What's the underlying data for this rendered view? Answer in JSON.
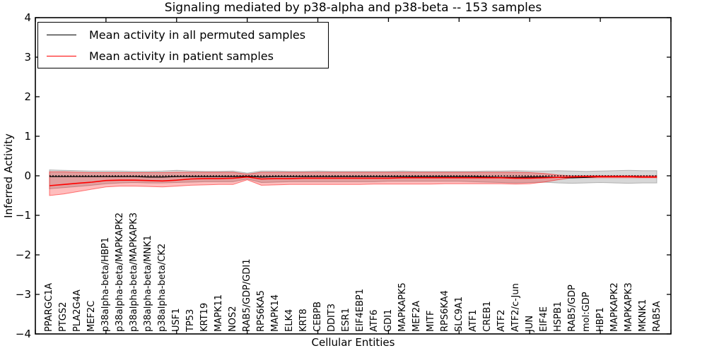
{
  "title": "Signaling mediated by p38-alpha and p38-beta -- 153 samples",
  "axes": {
    "x_label": "Cellular Entities",
    "y_label": "Inferred Activity"
  },
  "legend": {
    "items": [
      {
        "label": "Mean activity in all permuted samples",
        "color": "#000000"
      },
      {
        "label": "Mean activity in patient samples",
        "color": "#ff0000"
      }
    ]
  },
  "colors": {
    "permuted_line": "#000000",
    "patient_line": "#ff0000",
    "permuted_band_fill": "rgba(110,110,110,0.28)",
    "permuted_band_edge": "rgba(110,110,110,0.45)",
    "patient_band_fill": "rgba(255,0,0,0.26)",
    "patient_band_edge": "rgba(255,0,0,0.50)",
    "zero_line": "#000000",
    "frame": "#000000"
  },
  "chart_data": {
    "type": "line",
    "title": "Signaling mediated by p38-alpha and p38-beta -- 153 samples",
    "xlabel": "Cellular Entities",
    "ylabel": "Inferred Activity",
    "ylim": [
      -4,
      4
    ],
    "xlim": [
      0,
      45
    ],
    "grid": false,
    "legend_position": "upper left",
    "yticks": [
      -4,
      -3,
      -2,
      -1,
      0,
      1,
      2,
      3,
      4
    ],
    "yticklabels": [
      "−4",
      "−3",
      "−2",
      "−1",
      "0",
      "1",
      "2",
      "3",
      "4"
    ],
    "xticks": [
      0,
      5,
      10,
      15,
      20,
      25,
      30,
      35,
      40,
      45
    ],
    "zero_reference_line": {
      "y": 0,
      "style": "dotted",
      "color": "#000000"
    },
    "categories": [
      "PPARGC1A",
      "PTGS2",
      "PLA2G4A",
      "MEF2C",
      "p38alpha-beta/HBP1",
      "p38alpha-beta/MAPKAPK2",
      "p38alpha-beta/MAPKAPK3",
      "p38alpha-beta/MNK1",
      "p38alpha-beta/CK2",
      "USF1",
      "TP53",
      "KRT19",
      "MAPK11",
      "NOS2",
      "RAB5/GDP/GDI1",
      "RPS6KA5",
      "MAPK14",
      "ELK4",
      "KRT8",
      "CEBPB",
      "DDIT3",
      "ESR1",
      "EIF4EBP1",
      "ATF6",
      "GDI1",
      "MAPKAPK5",
      "MEF2A",
      "MITF",
      "RPS6KA4",
      "SLC9A1",
      "ATF1",
      "CREB1",
      "ATF2",
      "ATF2/c-Jun",
      "JUN",
      "EIF4E",
      "HSPB1",
      "RAB5/GDP",
      "mol:GDP",
      "HBP1",
      "MAPKAPK2",
      "MAPKAPK3",
      "MKNK1",
      "RAB5A"
    ],
    "series": [
      {
        "name": "Mean activity in all permuted samples",
        "color": "#000000",
        "values": [
          -0.02,
          -0.02,
          -0.02,
          -0.02,
          -0.02,
          -0.02,
          -0.02,
          -0.03,
          -0.03,
          -0.02,
          -0.02,
          -0.02,
          -0.02,
          -0.02,
          -0.01,
          -0.03,
          -0.02,
          -0.02,
          -0.02,
          -0.02,
          -0.02,
          -0.02,
          -0.02,
          -0.02,
          -0.02,
          -0.02,
          -0.02,
          -0.02,
          -0.02,
          -0.02,
          -0.02,
          -0.03,
          -0.04,
          -0.04,
          -0.03,
          -0.03,
          -0.04,
          -0.05,
          -0.04,
          -0.02,
          -0.02,
          -0.02,
          -0.03,
          -0.03
        ]
      },
      {
        "name": "Mean activity in patient samples",
        "color": "#ff0000",
        "values": [
          -0.25,
          -0.22,
          -0.19,
          -0.16,
          -0.12,
          -0.11,
          -0.11,
          -0.12,
          -0.13,
          -0.11,
          -0.08,
          -0.07,
          -0.07,
          -0.06,
          -0.03,
          -0.08,
          -0.07,
          -0.07,
          -0.06,
          -0.06,
          -0.06,
          -0.06,
          -0.06,
          -0.06,
          -0.06,
          -0.05,
          -0.05,
          -0.05,
          -0.05,
          -0.05,
          -0.05,
          -0.05,
          -0.05,
          -0.06,
          -0.06,
          -0.05,
          -0.04,
          -0.03,
          -0.02,
          -0.02,
          -0.02,
          -0.02,
          -0.03,
          -0.03
        ]
      }
    ],
    "bands": [
      {
        "name": "permuted samples range",
        "fill": "rgba(110,110,110,0.28)",
        "edge": "rgba(110,110,110,0.45)",
        "upper": [
          0.15,
          0.14,
          0.13,
          0.12,
          0.12,
          0.12,
          0.11,
          0.11,
          0.12,
          0.14,
          0.12,
          0.11,
          0.11,
          0.12,
          0.07,
          0.12,
          0.12,
          0.11,
          0.11,
          0.12,
          0.11,
          0.11,
          0.11,
          0.11,
          0.11,
          0.12,
          0.11,
          0.11,
          0.11,
          0.11,
          0.11,
          0.12,
          0.12,
          0.13,
          0.12,
          0.12,
          0.13,
          0.12,
          0.11,
          0.12,
          0.13,
          0.14,
          0.13,
          0.13
        ],
        "lower": [
          -0.33,
          -0.3,
          -0.27,
          -0.24,
          -0.2,
          -0.18,
          -0.17,
          -0.18,
          -0.18,
          -0.17,
          -0.16,
          -0.15,
          -0.15,
          -0.15,
          -0.08,
          -0.17,
          -0.16,
          -0.15,
          -0.15,
          -0.15,
          -0.15,
          -0.15,
          -0.15,
          -0.15,
          -0.14,
          -0.14,
          -0.14,
          -0.14,
          -0.14,
          -0.14,
          -0.15,
          -0.16,
          -0.17,
          -0.18,
          -0.17,
          -0.16,
          -0.18,
          -0.19,
          -0.18,
          -0.17,
          -0.18,
          -0.19,
          -0.18,
          -0.18
        ]
      },
      {
        "name": "patient samples range",
        "fill": "rgba(255,0,0,0.26)",
        "edge": "rgba(255,0,0,0.50)",
        "upper": [
          0.1,
          0.1,
          0.09,
          0.08,
          0.08,
          0.08,
          0.08,
          0.08,
          0.08,
          0.09,
          0.09,
          0.09,
          0.09,
          0.09,
          0.04,
          0.09,
          0.09,
          0.09,
          0.09,
          0.09,
          0.09,
          0.09,
          0.09,
          0.09,
          0.09,
          0.09,
          0.09,
          0.09,
          0.09,
          0.09,
          0.09,
          0.09,
          0.09,
          0.09,
          0.08,
          0.06,
          0.02,
          0.0,
          0.0,
          0.0,
          0.0,
          0.0,
          0.0,
          0.0
        ],
        "lower": [
          -0.5,
          -0.46,
          -0.4,
          -0.34,
          -0.28,
          -0.26,
          -0.26,
          -0.27,
          -0.28,
          -0.26,
          -0.24,
          -0.23,
          -0.22,
          -0.22,
          -0.1,
          -0.24,
          -0.23,
          -0.22,
          -0.22,
          -0.22,
          -0.22,
          -0.22,
          -0.22,
          -0.21,
          -0.21,
          -0.21,
          -0.21,
          -0.21,
          -0.2,
          -0.2,
          -0.2,
          -0.2,
          -0.2,
          -0.21,
          -0.2,
          -0.16,
          -0.1,
          -0.05,
          -0.05,
          -0.05,
          -0.05,
          -0.05,
          -0.05,
          -0.05
        ]
      }
    ]
  }
}
